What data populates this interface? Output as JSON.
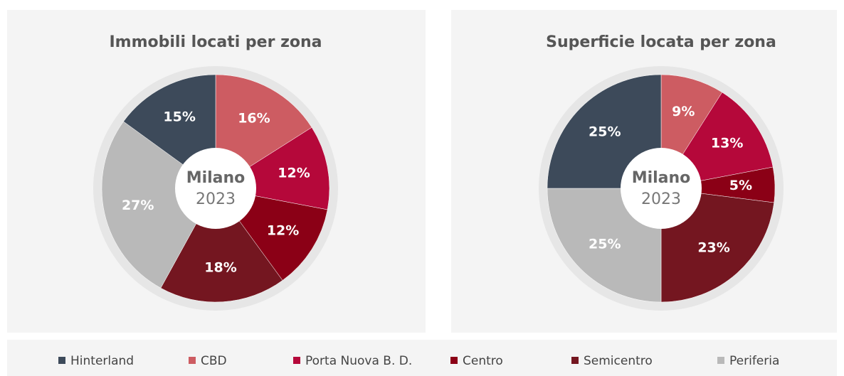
{
  "chart_data": [
    {
      "type": "pie",
      "title": "Immobili locati per zona",
      "center_label": "Milano",
      "center_sublabel": "2023",
      "categories": [
        "CBD",
        "Porta Nuova B. D.",
        "Centro",
        "Semicentro",
        "Periferia",
        "Hinterland"
      ],
      "values": [
        16,
        12,
        12,
        18,
        27,
        15
      ],
      "value_labels": [
        "16%",
        "12%",
        "12%",
        "18%",
        "27%",
        "15%"
      ],
      "colors": [
        "#cd5c62",
        "#b5083a",
        "#8b0016",
        "#741620",
        "#b9b9b9",
        "#3d4a5a"
      ]
    },
    {
      "type": "pie",
      "title": "Superficie locata per zona",
      "center_label": "Milano",
      "center_sublabel": "2023",
      "categories": [
        "CBD",
        "Porta Nuova B. D.",
        "Centro",
        "Semicentro",
        "Periferia",
        "Hinterland"
      ],
      "values": [
        9,
        13,
        5,
        23,
        25,
        25
      ],
      "value_labels": [
        "9%",
        "13%",
        "5%",
        "23%",
        "25%",
        "25%"
      ],
      "colors": [
        "#cd5c62",
        "#b5083a",
        "#8b0016",
        "#741620",
        "#b9b9b9",
        "#3d4a5a"
      ]
    }
  ],
  "legend": {
    "order": [
      5,
      0,
      1,
      2,
      3,
      4
    ]
  }
}
